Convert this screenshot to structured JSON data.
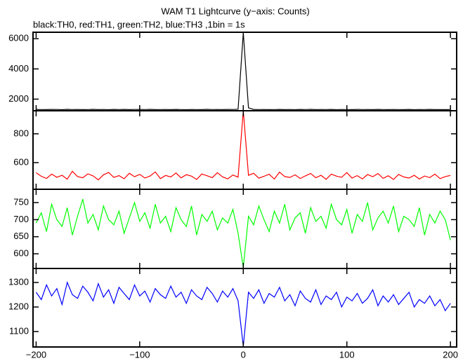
{
  "chart_data": {
    "type": "line",
    "title": "WAM T1 Lightcurve (y−axis: Counts)",
    "subtitle": "black:TH0, red:TH1, green:TH2, blue:TH3 ,1bin = 1s",
    "x": [
      -200,
      -195,
      -190,
      -185,
      -180,
      -175,
      -170,
      -165,
      -160,
      -155,
      -150,
      -145,
      -140,
      -135,
      -130,
      -125,
      -120,
      -115,
      -110,
      -105,
      -100,
      -95,
      -90,
      -85,
      -80,
      -75,
      -70,
      -65,
      -60,
      -55,
      -50,
      -45,
      -40,
      -35,
      -30,
      -25,
      -20,
      -15,
      -10,
      -5,
      0,
      5,
      10,
      15,
      20,
      25,
      30,
      35,
      40,
      45,
      50,
      55,
      60,
      65,
      70,
      75,
      80,
      85,
      90,
      95,
      100,
      105,
      110,
      115,
      120,
      125,
      130,
      135,
      140,
      145,
      150,
      155,
      160,
      165,
      170,
      175,
      180,
      185,
      190,
      195,
      200
    ],
    "xlim": [
      -203,
      206
    ],
    "xticks": [
      {
        "value": -200,
        "label": "−200"
      },
      {
        "value": -100,
        "label": "−100"
      },
      0,
      100,
      200
    ],
    "panels": [
      {
        "series": [
          {
            "color": "#000000",
            "values": [
              1320,
              1310,
              1305,
              1318,
              1312,
              1300,
              1322,
              1309,
              1315,
              1303,
              1311,
              1324,
              1306,
              1313,
              1301,
              1317,
              1308,
              1320,
              1304,
              1312,
              1316,
              1307,
              1321,
              1302,
              1310,
              1314,
              1305,
              1319,
              1309,
              1300,
              1315,
              1311,
              1303,
              1322,
              1308,
              1313,
              1306,
              1318,
              1312,
              1330,
              6400,
              1420,
              1320,
              1308,
              1315,
              1302,
              1311,
              1319,
              1306,
              1313,
              1300,
              1316,
              1309,
              1321,
              1304,
              1312,
              1307,
              1318,
              1301,
              1314,
              1310,
              1305,
              1320,
              1308,
              1313,
              1302,
              1317,
              1309,
              1303,
              1315,
              1311,
              1306,
              1319,
              1300,
              1312,
              1308,
              1316,
              1304,
              1310,
              1305,
              1313
            ]
          }
        ],
        "ylim": [
          1230,
          6430
        ],
        "yticks": [
          2000,
          4000,
          6000
        ]
      },
      {
        "series": [
          {
            "color": "#ff0000",
            "values": [
              530,
              505,
              490,
              520,
              498,
              512,
              485,
              540,
              503,
              495,
              522,
              508,
              480,
              515,
              532,
              497,
              510,
              488,
              526,
              502,
              518,
              493,
              507,
              535,
              489,
              511,
              500,
              528,
              494,
              516,
              506,
              483,
              521,
              509,
              496,
              530,
              501,
              487,
              514,
              499,
              960,
              512,
              526,
              492,
              505,
              519,
              486,
              534,
              503,
              497,
              515,
              490,
              508,
              525,
              495,
              512,
              484,
              520,
              506,
              498,
              531,
              493,
              510,
              487,
              517,
              502,
              524,
              491,
              509,
              483,
              518,
              500,
              493,
              512,
              486,
              507,
              496,
              520,
              489,
              503,
              511
            ]
          }
        ],
        "ylim": [
          415,
          960
        ],
        "yticks": [
          600,
          800
        ]
      },
      {
        "series": [
          {
            "color": "#00ff00",
            "values": [
              690,
              720,
              665,
              745,
              700,
              680,
              735,
              655,
              710,
              760,
              690,
              715,
              670,
              740,
              700,
              685,
              725,
              660,
              705,
              750,
              695,
              720,
              675,
              745,
              690,
              710,
              665,
              735,
              700,
              680,
              740,
              655,
              715,
              695,
              725,
              670,
              705,
              690,
              730,
              660,
              560,
              710,
              685,
              740,
              700,
              665,
              725,
              690,
              745,
              670,
              705,
              720,
              660,
              735,
              695,
              710,
              675,
              745,
              700,
              685,
              730,
              660,
              715,
              695,
              750,
              670,
              705,
              725,
              690,
              740,
              665,
              710,
              700,
              680,
              735,
              655,
              715,
              690,
              725,
              700,
              640
            ]
          }
        ],
        "ylim": [
          557,
          789
        ],
        "yticks": [
          600,
          650,
          700,
          750
        ]
      },
      {
        "series": [
          {
            "color": "#0000ff",
            "values": [
              1260,
              1230,
              1290,
              1245,
              1275,
              1210,
              1300,
              1250,
              1235,
              1285,
              1260,
              1225,
              1295,
              1240,
              1270,
              1215,
              1280,
              1255,
              1230,
              1290,
              1245,
              1265,
              1220,
              1275,
              1250,
              1235,
              1285,
              1240,
              1260,
              1215,
              1270,
              1245,
              1230,
              1280,
              1255,
              1220,
              1265,
              1240,
              1275,
              1225,
              1040,
              1260,
              1235,
              1270,
              1215,
              1255,
              1240,
              1280,
              1225,
              1250,
              1205,
              1265,
              1235,
              1220,
              1270,
              1210,
              1245,
              1230,
              1260,
              1200,
              1240,
              1225,
              1255,
              1215,
              1235,
              1270,
              1205,
              1245,
              1220,
              1250,
              1210,
              1235,
              1260,
              1200,
              1230,
              1215,
              1245,
              1205,
              1230,
              1185,
              1215
            ]
          }
        ],
        "ylim": [
          1037,
          1357
        ],
        "yticks": [
          1100,
          1200,
          1300
        ]
      }
    ]
  }
}
